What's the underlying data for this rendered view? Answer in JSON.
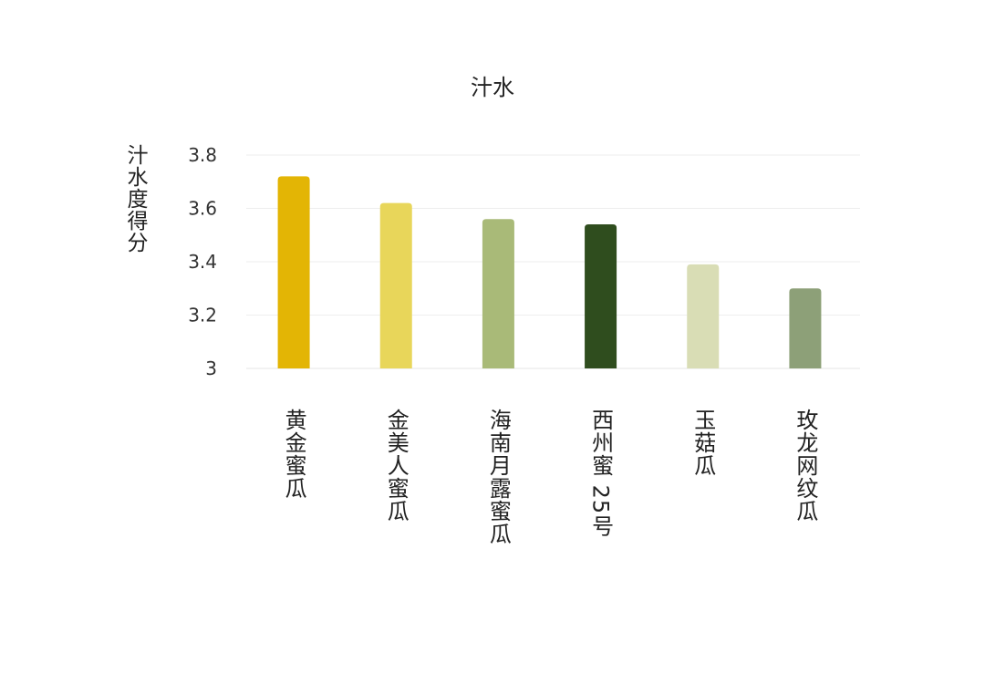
{
  "chart_data": {
    "type": "bar",
    "title": "汁水",
    "xlabel": "",
    "ylabel": "汁水度得分",
    "ylim": [
      3,
      3.8
    ],
    "yticks": [
      "3",
      "3.2",
      "3.4",
      "3.6",
      "3.8"
    ],
    "grid": true,
    "categories": [
      "黄金蜜瓜",
      "金美人蜜瓜",
      "海南月露蜜瓜",
      "西州蜜 25号",
      "玉菇瓜",
      "玫龙网纹瓜"
    ],
    "values": [
      3.72,
      3.62,
      3.56,
      3.54,
      3.39,
      3.3
    ],
    "colors": [
      "#E3B505",
      "#E8D65A",
      "#A9BA78",
      "#2F4D1E",
      "#D9DDB5",
      "#8DA078"
    ]
  }
}
